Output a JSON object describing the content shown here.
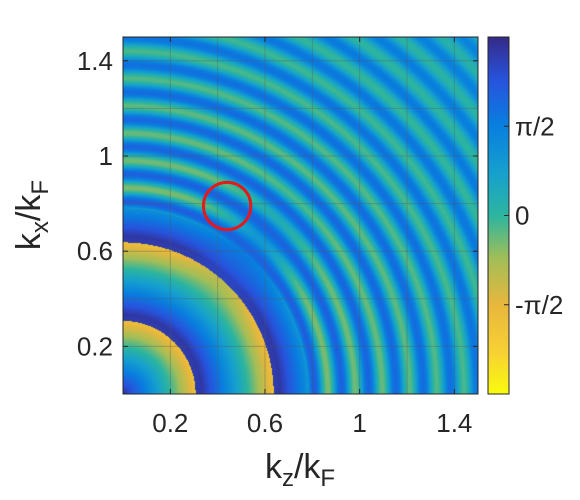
{
  "chart_data": {
    "type": "heatmap",
    "title": "",
    "xlabel": {
      "base": "k",
      "sub": "z",
      "sep": "/k",
      "sub2": "F"
    },
    "ylabel": {
      "base": "k",
      "sub": "x",
      "sep": "/k",
      "sub2": "F"
    },
    "xlim": [
      0,
      1.5
    ],
    "ylim": [
      0,
      1.5
    ],
    "xticks": [
      {
        "value": 0.2,
        "label": "0.2"
      },
      {
        "value": 0.6,
        "label": "0.6"
      },
      {
        "value": 1.0,
        "label": "1"
      },
      {
        "value": 1.4,
        "label": "1.4"
      }
    ],
    "yticks": [
      {
        "value": 0.2,
        "label": "0.2"
      },
      {
        "value": 0.6,
        "label": "0.6"
      },
      {
        "value": 1.0,
        "label": "1"
      },
      {
        "value": 1.4,
        "label": "1.4"
      }
    ],
    "grid": true,
    "colormap": "parula (reversed: yellow = -π, dark blue = +π)",
    "colorbar": {
      "range": [
        -3.1416,
        3.1416
      ],
      "ticks": [
        {
          "value": 1.5708,
          "label": "π/2"
        },
        {
          "value": 0,
          "label": "0"
        },
        {
          "value": -1.5708,
          "label": "-π/2"
        }
      ]
    },
    "annotations": [
      {
        "type": "circle",
        "center": [
          0.44,
          0.79
        ],
        "radius": 0.1,
        "color": "#e31a1c"
      }
    ],
    "field_description": "phase vs (k_z, k_x): concentric ring pattern around origin with a branch-cut discontinuity ending at the circled point"
  }
}
